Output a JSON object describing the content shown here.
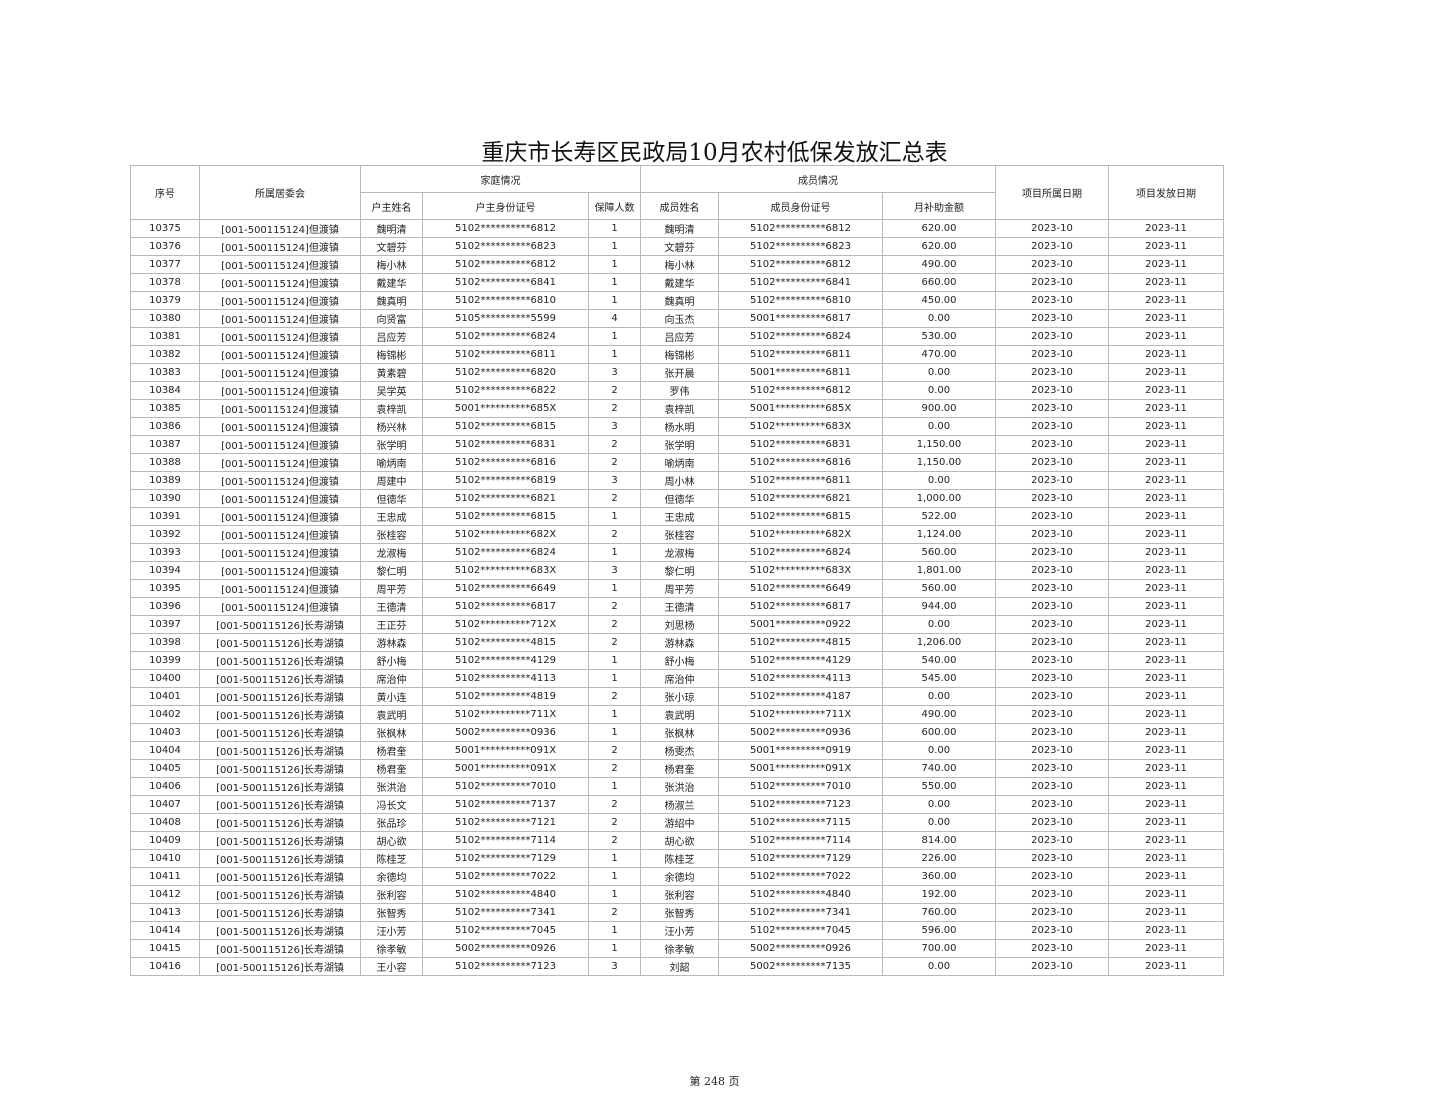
{
  "title": "重庆市长寿区民政局10月农村低保发放汇总表",
  "headers": {
    "seq": "序号",
    "committee": "所属居委会",
    "family_group": "家庭情况",
    "member_group": "成员情况",
    "head_name": "户主姓名",
    "head_id": "户主身份证号",
    "count": "保障人数",
    "member_name": "成员姓名",
    "member_id": "成员身份证号",
    "amount": "月补助金额",
    "period": "项目所属日期",
    "issue": "项目发放日期"
  },
  "rows": [
    [
      "10375",
      "[001-500115124]但渡镇",
      "魏明清",
      "5102**********6812",
      "1",
      "魏明清",
      "5102**********6812",
      "620.00",
      "2023-10",
      "2023-11"
    ],
    [
      "10376",
      "[001-500115124]但渡镇",
      "文碧芬",
      "5102**********6823",
      "1",
      "文碧芬",
      "5102**********6823",
      "620.00",
      "2023-10",
      "2023-11"
    ],
    [
      "10377",
      "[001-500115124]但渡镇",
      "梅小林",
      "5102**********6812",
      "1",
      "梅小林",
      "5102**********6812",
      "490.00",
      "2023-10",
      "2023-11"
    ],
    [
      "10378",
      "[001-500115124]但渡镇",
      "戴建华",
      "5102**********6841",
      "1",
      "戴建华",
      "5102**********6841",
      "660.00",
      "2023-10",
      "2023-11"
    ],
    [
      "10379",
      "[001-500115124]但渡镇",
      "魏真明",
      "5102**********6810",
      "1",
      "魏真明",
      "5102**********6810",
      "450.00",
      "2023-10",
      "2023-11"
    ],
    [
      "10380",
      "[001-500115124]但渡镇",
      "向贤富",
      "5105**********5599",
      "4",
      "向玉杰",
      "5001**********6817",
      "0.00",
      "2023-10",
      "2023-11"
    ],
    [
      "10381",
      "[001-500115124]但渡镇",
      "吕应芳",
      "5102**********6824",
      "1",
      "吕应芳",
      "5102**********6824",
      "530.00",
      "2023-10",
      "2023-11"
    ],
    [
      "10382",
      "[001-500115124]但渡镇",
      "梅锦彬",
      "5102**********6811",
      "1",
      "梅锦彬",
      "5102**********6811",
      "470.00",
      "2023-10",
      "2023-11"
    ],
    [
      "10383",
      "[001-500115124]但渡镇",
      "黄素碧",
      "5102**********6820",
      "3",
      "张开晨",
      "5001**********6811",
      "0.00",
      "2023-10",
      "2023-11"
    ],
    [
      "10384",
      "[001-500115124]但渡镇",
      "吴学英",
      "5102**********6822",
      "2",
      "罗伟",
      "5102**********6812",
      "0.00",
      "2023-10",
      "2023-11"
    ],
    [
      "10385",
      "[001-500115124]但渡镇",
      "袁梓凯",
      "5001**********685X",
      "2",
      "袁梓凯",
      "5001**********685X",
      "900.00",
      "2023-10",
      "2023-11"
    ],
    [
      "10386",
      "[001-500115124]但渡镇",
      "杨兴林",
      "5102**********6815",
      "3",
      "杨水明",
      "5102**********683X",
      "0.00",
      "2023-10",
      "2023-11"
    ],
    [
      "10387",
      "[001-500115124]但渡镇",
      "张学明",
      "5102**********6831",
      "2",
      "张学明",
      "5102**********6831",
      "1,150.00",
      "2023-10",
      "2023-11"
    ],
    [
      "10388",
      "[001-500115124]但渡镇",
      "喻炳南",
      "5102**********6816",
      "2",
      "喻炳南",
      "5102**********6816",
      "1,150.00",
      "2023-10",
      "2023-11"
    ],
    [
      "10389",
      "[001-500115124]但渡镇",
      "周建中",
      "5102**********6819",
      "3",
      "周小林",
      "5102**********6811",
      "0.00",
      "2023-10",
      "2023-11"
    ],
    [
      "10390",
      "[001-500115124]但渡镇",
      "但德华",
      "5102**********6821",
      "2",
      "但德华",
      "5102**********6821",
      "1,000.00",
      "2023-10",
      "2023-11"
    ],
    [
      "10391",
      "[001-500115124]但渡镇",
      "王忠成",
      "5102**********6815",
      "1",
      "王忠成",
      "5102**********6815",
      "522.00",
      "2023-10",
      "2023-11"
    ],
    [
      "10392",
      "[001-500115124]但渡镇",
      "张桂容",
      "5102**********682X",
      "2",
      "张桂容",
      "5102**********682X",
      "1,124.00",
      "2023-10",
      "2023-11"
    ],
    [
      "10393",
      "[001-500115124]但渡镇",
      "龙淑梅",
      "5102**********6824",
      "1",
      "龙淑梅",
      "5102**********6824",
      "560.00",
      "2023-10",
      "2023-11"
    ],
    [
      "10394",
      "[001-500115124]但渡镇",
      "黎仁明",
      "5102**********683X",
      "3",
      "黎仁明",
      "5102**********683X",
      "1,801.00",
      "2023-10",
      "2023-11"
    ],
    [
      "10395",
      "[001-500115124]但渡镇",
      "周平芳",
      "5102**********6649",
      "1",
      "周平芳",
      "5102**********6649",
      "560.00",
      "2023-10",
      "2023-11"
    ],
    [
      "10396",
      "[001-500115124]但渡镇",
      "王德清",
      "5102**********6817",
      "2",
      "王德清",
      "5102**********6817",
      "944.00",
      "2023-10",
      "2023-11"
    ],
    [
      "10397",
      "[001-500115126]长寿湖镇",
      "王正芬",
      "5102**********712X",
      "2",
      "刘思杨",
      "5001**********0922",
      "0.00",
      "2023-10",
      "2023-11"
    ],
    [
      "10398",
      "[001-500115126]长寿湖镇",
      "游林森",
      "5102**********4815",
      "2",
      "游林森",
      "5102**********4815",
      "1,206.00",
      "2023-10",
      "2023-11"
    ],
    [
      "10399",
      "[001-500115126]长寿湖镇",
      "舒小梅",
      "5102**********4129",
      "1",
      "舒小梅",
      "5102**********4129",
      "540.00",
      "2023-10",
      "2023-11"
    ],
    [
      "10400",
      "[001-500115126]长寿湖镇",
      "席治仲",
      "5102**********4113",
      "1",
      "席治仲",
      "5102**********4113",
      "545.00",
      "2023-10",
      "2023-11"
    ],
    [
      "10401",
      "[001-500115126]长寿湖镇",
      "黄小连",
      "5102**********4819",
      "2",
      "张小琼",
      "5102**********4187",
      "0.00",
      "2023-10",
      "2023-11"
    ],
    [
      "10402",
      "[001-500115126]长寿湖镇",
      "袁武明",
      "5102**********711X",
      "1",
      "袁武明",
      "5102**********711X",
      "490.00",
      "2023-10",
      "2023-11"
    ],
    [
      "10403",
      "[001-500115126]长寿湖镇",
      "张枫林",
      "5002**********0936",
      "1",
      "张枫林",
      "5002**********0936",
      "600.00",
      "2023-10",
      "2023-11"
    ],
    [
      "10404",
      "[001-500115126]长寿湖镇",
      "杨君奎",
      "5001**********091X",
      "2",
      "杨雯杰",
      "5001**********0919",
      "0.00",
      "2023-10",
      "2023-11"
    ],
    [
      "10405",
      "[001-500115126]长寿湖镇",
      "杨君奎",
      "5001**********091X",
      "2",
      "杨君奎",
      "5001**********091X",
      "740.00",
      "2023-10",
      "2023-11"
    ],
    [
      "10406",
      "[001-500115126]长寿湖镇",
      "张洪治",
      "5102**********7010",
      "1",
      "张洪治",
      "5102**********7010",
      "550.00",
      "2023-10",
      "2023-11"
    ],
    [
      "10407",
      "[001-500115126]长寿湖镇",
      "冯长文",
      "5102**********7137",
      "2",
      "杨淑兰",
      "5102**********7123",
      "0.00",
      "2023-10",
      "2023-11"
    ],
    [
      "10408",
      "[001-500115126]长寿湖镇",
      "张品珍",
      "5102**********7121",
      "2",
      "游绍中",
      "5102**********7115",
      "0.00",
      "2023-10",
      "2023-11"
    ],
    [
      "10409",
      "[001-500115126]长寿湖镇",
      "胡心欲",
      "5102**********7114",
      "2",
      "胡心欲",
      "5102**********7114",
      "814.00",
      "2023-10",
      "2023-11"
    ],
    [
      "10410",
      "[001-500115126]长寿湖镇",
      "陈桂芝",
      "5102**********7129",
      "1",
      "陈桂芝",
      "5102**********7129",
      "226.00",
      "2023-10",
      "2023-11"
    ],
    [
      "10411",
      "[001-500115126]长寿湖镇",
      "余德均",
      "5102**********7022",
      "1",
      "余德均",
      "5102**********7022",
      "360.00",
      "2023-10",
      "2023-11"
    ],
    [
      "10412",
      "[001-500115126]长寿湖镇",
      "张利容",
      "5102**********4840",
      "1",
      "张利容",
      "5102**********4840",
      "192.00",
      "2023-10",
      "2023-11"
    ],
    [
      "10413",
      "[001-500115126]长寿湖镇",
      "张智秀",
      "5102**********7341",
      "2",
      "张智秀",
      "5102**********7341",
      "760.00",
      "2023-10",
      "2023-11"
    ],
    [
      "10414",
      "[001-500115126]长寿湖镇",
      "汪小芳",
      "5102**********7045",
      "1",
      "汪小芳",
      "5102**********7045",
      "596.00",
      "2023-10",
      "2023-11"
    ],
    [
      "10415",
      "[001-500115126]长寿湖镇",
      "徐孝敏",
      "5002**********0926",
      "1",
      "徐孝敏",
      "5002**********0926",
      "700.00",
      "2023-10",
      "2023-11"
    ],
    [
      "10416",
      "[001-500115126]长寿湖镇",
      "王小容",
      "5102**********7123",
      "3",
      "刘韶",
      "5002**********7135",
      "0.00",
      "2023-10",
      "2023-11"
    ]
  ],
  "footer": "第 248 页"
}
